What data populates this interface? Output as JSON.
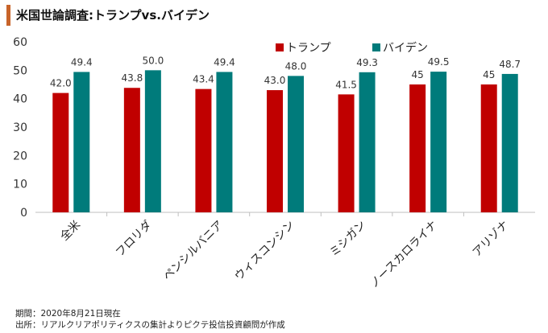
{
  "title": "米国世論調査:トランプvs.バイデン",
  "chart_data": {
    "type": "bar",
    "title": "米国世論調査:トランプvs.バイデン",
    "categories": [
      "全米",
      "フロリダ",
      "ペンシルバニア",
      "ウィスコンシン",
      "ミシガン",
      "ノースカロライナ",
      "アリゾナ"
    ],
    "series": [
      {
        "name": "トランプ",
        "color": "#c00000",
        "values": [
          42.0,
          43.8,
          43.4,
          43.0,
          41.5,
          45,
          45
        ],
        "labels": [
          "42.0",
          "43.8",
          "43.4",
          "43.0",
          "41.5",
          "45",
          "45"
        ]
      },
      {
        "name": "バイデン",
        "color": "#007b7b",
        "values": [
          49.4,
          50.0,
          49.4,
          48.0,
          49.3,
          49.5,
          48.7
        ],
        "labels": [
          "49.4",
          "50.0",
          "49.4",
          "48.0",
          "49.3",
          "49.5",
          "48.7"
        ]
      }
    ],
    "ylim": [
      0,
      60
    ],
    "yticks": [
      0,
      10,
      20,
      30,
      40,
      50,
      60
    ],
    "grid": false,
    "legend": "top-center",
    "xlabel": "",
    "ylabel": ""
  },
  "footnotes": {
    "period": "期間：2020年8月21日現在",
    "source": "出所：リアルクリアポリティクスの集計よりピクテ投信投資顧問が作成"
  }
}
